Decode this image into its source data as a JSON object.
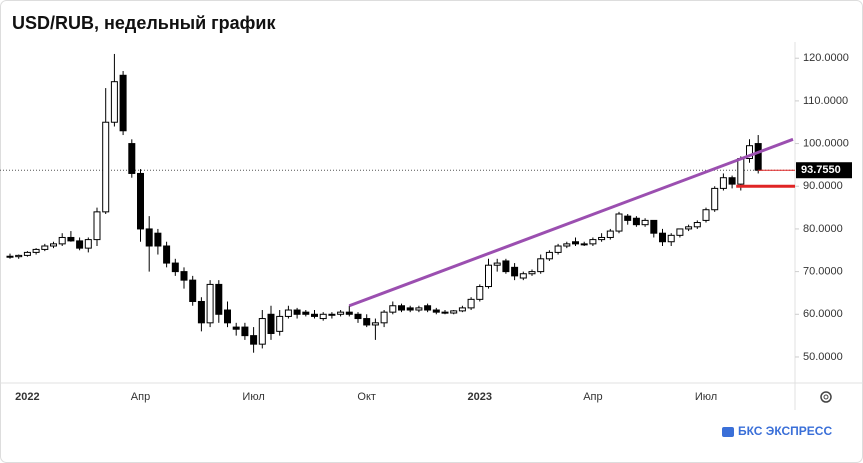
{
  "chart_data": {
    "type": "candlestick",
    "title": "USD/RUB, недельный график",
    "brand": "БКС ЭКСПРЕСС",
    "categories": [
      null,
      null,
      "2022",
      null,
      null,
      null,
      null,
      null,
      null,
      null,
      null,
      null,
      null,
      null,
      null,
      "Апр",
      null,
      null,
      null,
      null,
      null,
      null,
      null,
      null,
      null,
      null,
      null,
      null,
      "Июл",
      null,
      null,
      null,
      null,
      null,
      null,
      null,
      null,
      null,
      null,
      null,
      null,
      "Окт",
      null,
      null,
      null,
      null,
      null,
      null,
      null,
      null,
      null,
      null,
      null,
      null,
      "2023",
      null,
      null,
      null,
      null,
      null,
      null,
      null,
      null,
      null,
      null,
      null,
      null,
      "Апр",
      null,
      null,
      null,
      null,
      null,
      null,
      null,
      null,
      null,
      null,
      null,
      null,
      "Июл",
      null,
      null,
      null,
      null,
      null,
      null
    ],
    "open": [
      73.6,
      73.5,
      73.8,
      74.5,
      75.2,
      76.0,
      76.5,
      78.0,
      77.2,
      75.5,
      77.5,
      84.0,
      105.0,
      116.0,
      100.0,
      93.0,
      80.0,
      79.0,
      76.0,
      72.0,
      70.0,
      68.0,
      63.0,
      58.0,
      67.0,
      61.0,
      57.0,
      57.0,
      55.0,
      53.0,
      60.0,
      56.0,
      59.5,
      61.0,
      60.5,
      60.0,
      59.0,
      60.0,
      60.0,
      60.5,
      60.0,
      59.0,
      57.5,
      58.0,
      60.5,
      62.0,
      61.5,
      61.0,
      62.0,
      61.0,
      60.5,
      60.3,
      60.8,
      61.5,
      63.5,
      66.5,
      71.5,
      72.5,
      71.0,
      68.5,
      69.5,
      70.0,
      73.0,
      74.5,
      76.0,
      77.0,
      76.5,
      76.5,
      77.5,
      78.0,
      79.5,
      83.0,
      82.5,
      81.0,
      82.0,
      79.0,
      77.0,
      78.5,
      80.0,
      80.5,
      82.0,
      84.5,
      89.5,
      92.0,
      90.5,
      96.5,
      100.0
    ],
    "high": [
      74.2,
      74.0,
      74.8,
      75.5,
      76.5,
      77.0,
      79.0,
      79.5,
      78.0,
      78.0,
      85.0,
      113.0,
      121.0,
      117.0,
      101.0,
      94.0,
      83.0,
      80.0,
      77.0,
      73.0,
      71.0,
      69.0,
      64.0,
      68.0,
      68.0,
      63.0,
      58.0,
      58.0,
      57.0,
      61.0,
      62.0,
      61.0,
      62.0,
      61.5,
      61.0,
      61.0,
      60.5,
      60.5,
      61.0,
      62.0,
      60.5,
      60.0,
      59.0,
      61.0,
      63.0,
      62.5,
      62.0,
      62.0,
      62.5,
      61.5,
      61.0,
      61.0,
      62.0,
      64.0,
      67.0,
      73.0,
      73.0,
      73.0,
      72.0,
      70.0,
      70.5,
      74.0,
      75.0,
      76.5,
      77.0,
      78.0,
      77.0,
      78.0,
      79.0,
      80.0,
      84.0,
      83.5,
      83.0,
      82.5,
      82.0,
      80.0,
      79.0,
      80.0,
      81.0,
      82.0,
      85.0,
      90.0,
      93.0,
      92.5,
      97.0,
      101.0,
      102.0
    ],
    "low": [
      73.0,
      73.0,
      73.5,
      74.0,
      74.8,
      75.5,
      76.0,
      77.0,
      75.0,
      74.5,
      76.0,
      83.5,
      104.0,
      102.0,
      92.0,
      77.0,
      70.0,
      74.0,
      71.0,
      69.0,
      66.0,
      62.0,
      56.0,
      57.0,
      58.0,
      57.0,
      55.0,
      54.0,
      51.0,
      52.0,
      54.0,
      55.0,
      59.0,
      59.0,
      59.5,
      59.0,
      58.5,
      59.0,
      59.5,
      59.5,
      58.0,
      57.0,
      54.0,
      57.0,
      60.0,
      60.5,
      60.5,
      60.5,
      60.5,
      60.0,
      60.0,
      60.0,
      60.5,
      61.0,
      63.0,
      66.0,
      70.0,
      69.5,
      68.0,
      68.0,
      69.0,
      69.5,
      72.5,
      74.0,
      75.5,
      76.0,
      76.0,
      76.0,
      77.0,
      77.5,
      79.0,
      81.0,
      80.5,
      80.5,
      78.0,
      76.0,
      76.0,
      78.0,
      79.5,
      80.0,
      81.5,
      84.0,
      89.0,
      89.5,
      89.0,
      95.5,
      93.0
    ],
    "close": [
      73.5,
      73.8,
      74.5,
      75.2,
      76.0,
      76.5,
      78.0,
      77.2,
      75.5,
      77.5,
      84.0,
      105.0,
      114.5,
      103.0,
      93.0,
      80.0,
      76.0,
      76.0,
      72.0,
      70.0,
      68.0,
      63.0,
      58.0,
      67.0,
      60.0,
      58.0,
      56.5,
      55.0,
      53.0,
      59.0,
      55.5,
      59.5,
      61.0,
      60.0,
      60.0,
      59.5,
      60.0,
      60.0,
      60.5,
      60.0,
      59.0,
      57.5,
      58.0,
      60.5,
      62.0,
      61.0,
      61.0,
      61.5,
      61.0,
      60.5,
      60.3,
      60.8,
      61.5,
      63.5,
      66.5,
      71.5,
      72.0,
      70.0,
      69.0,
      69.5,
      70.0,
      73.0,
      74.5,
      76.0,
      76.5,
      76.5,
      76.5,
      77.5,
      78.0,
      79.5,
      83.5,
      82.0,
      81.0,
      82.0,
      79.0,
      77.0,
      78.5,
      80.0,
      80.5,
      81.5,
      84.5,
      89.5,
      92.0,
      90.5,
      96.5,
      99.5,
      93.755
    ],
    "last_close_label": "93.7550",
    "up_color": "#ffffff",
    "down_color": "#000000",
    "trendline": {
      "color": "#9b4fb0",
      "points": [
        [
          39,
          62.0
        ],
        [
          90,
          101.0
        ]
      ]
    },
    "levels": [
      {
        "value": 90,
        "color": "#e02424"
      }
    ],
    "ylim": [
      43.9,
      123.8
    ],
    "yticks": [
      {
        "value": 50,
        "label": "50.0000"
      },
      {
        "value": 60,
        "label": "60.0000"
      },
      {
        "value": 70,
        "label": "70.0000"
      },
      {
        "value": 80,
        "label": "80.0000"
      },
      {
        "value": 90,
        "label": "90.0000"
      },
      {
        "value": 100,
        "label": "100.0000"
      },
      {
        "value": 110,
        "label": "110.0000"
      },
      {
        "value": 120,
        "label": "120.0000"
      }
    ],
    "grid": false
  }
}
